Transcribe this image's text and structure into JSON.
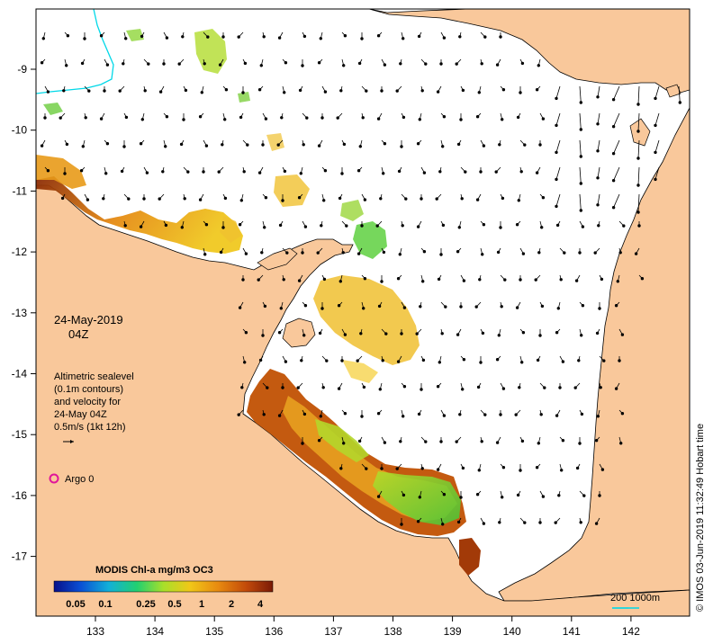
{
  "map": {
    "date_label": "24-May-2019",
    "time_label": "04Z",
    "legend_lines": [
      "Altimetric sealevel",
      "(0.1m contours)",
      "and velocity for",
      "24-May 04Z",
      "0.5m/s (1kt 12h)"
    ],
    "argo_label": "Argo 0",
    "colorbar_title": "MODIS Chl-a mg/m3 OC3",
    "colorbar_ticks": [
      "0.05",
      "0.1",
      "0.25",
      "0.5",
      "1",
      "2",
      "4"
    ],
    "scale_label": "200  1000m",
    "credit": "© IMOS 03-Jun-2019 11:32:49 Hobart time",
    "lon_ticks": [
      "133",
      "134",
      "135",
      "136",
      "137",
      "138",
      "139",
      "140",
      "141",
      "142"
    ],
    "lat_ticks": [
      "-9",
      "-10",
      "-11",
      "-12",
      "-13",
      "-14",
      "-15",
      "-16",
      "-17"
    ],
    "colors": {
      "land": "#f9c89b",
      "ocean": "#ffffff",
      "argo": "#e0169a",
      "contour_cyan": "#00d8e8",
      "colorbar": [
        "#08108a",
        "#0a4fd4",
        "#12b0d8",
        "#22d070",
        "#a8e02a",
        "#f0c818",
        "#e88a10",
        "#c24a0a",
        "#7a1a06"
      ]
    }
  }
}
